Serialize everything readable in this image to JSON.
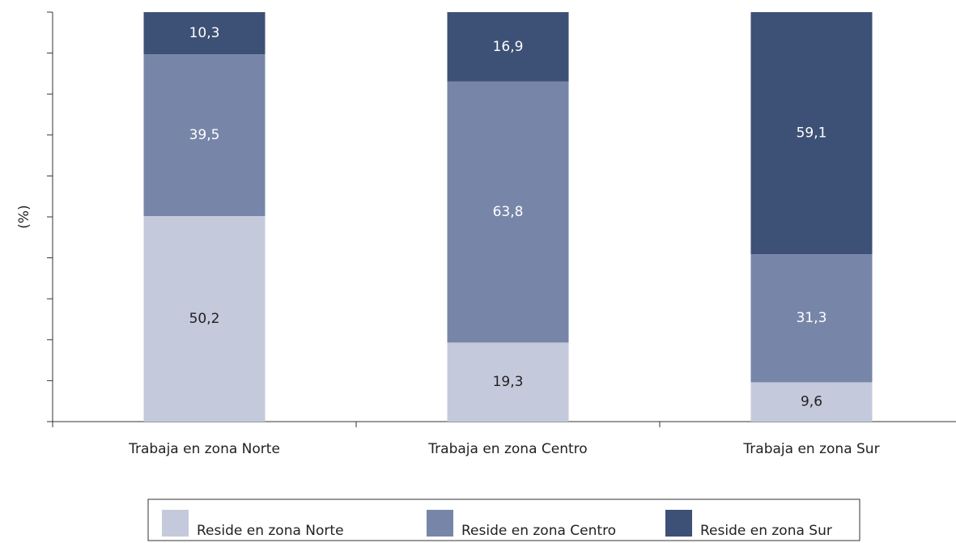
{
  "chart_data": {
    "type": "stacked_bar",
    "y_label": "(%)",
    "categories": [
      "Trabaja en zona Norte",
      "Trabaja en zona Centro",
      "Trabaja en zona Sur"
    ],
    "series": [
      {
        "name": "Reside en zona Norte",
        "color": "#c5c9dc",
        "label_color": "#222222",
        "values": [
          50.2,
          19.3,
          9.6
        ],
        "value_labels": [
          "50,2",
          "19,3",
          "9,6"
        ]
      },
      {
        "name": "Reside en zona Centro",
        "color": "#7786a8",
        "label_color": "#ffffff",
        "values": [
          39.5,
          63.8,
          31.3
        ],
        "value_labels": [
          "39,5",
          "63,8",
          "31,3"
        ]
      },
      {
        "name": "Reside en zona Sur",
        "color": "#3d5075",
        "label_color": "#ffffff",
        "values": [
          10.3,
          16.9,
          59.1
        ],
        "value_labels": [
          "10,3",
          "16,9",
          "59,1"
        ]
      }
    ],
    "ylim": [
      0,
      100
    ],
    "yticks": [
      0,
      10,
      20,
      30,
      40,
      50,
      60,
      70,
      80,
      90,
      100
    ],
    "legend": "bottom"
  }
}
